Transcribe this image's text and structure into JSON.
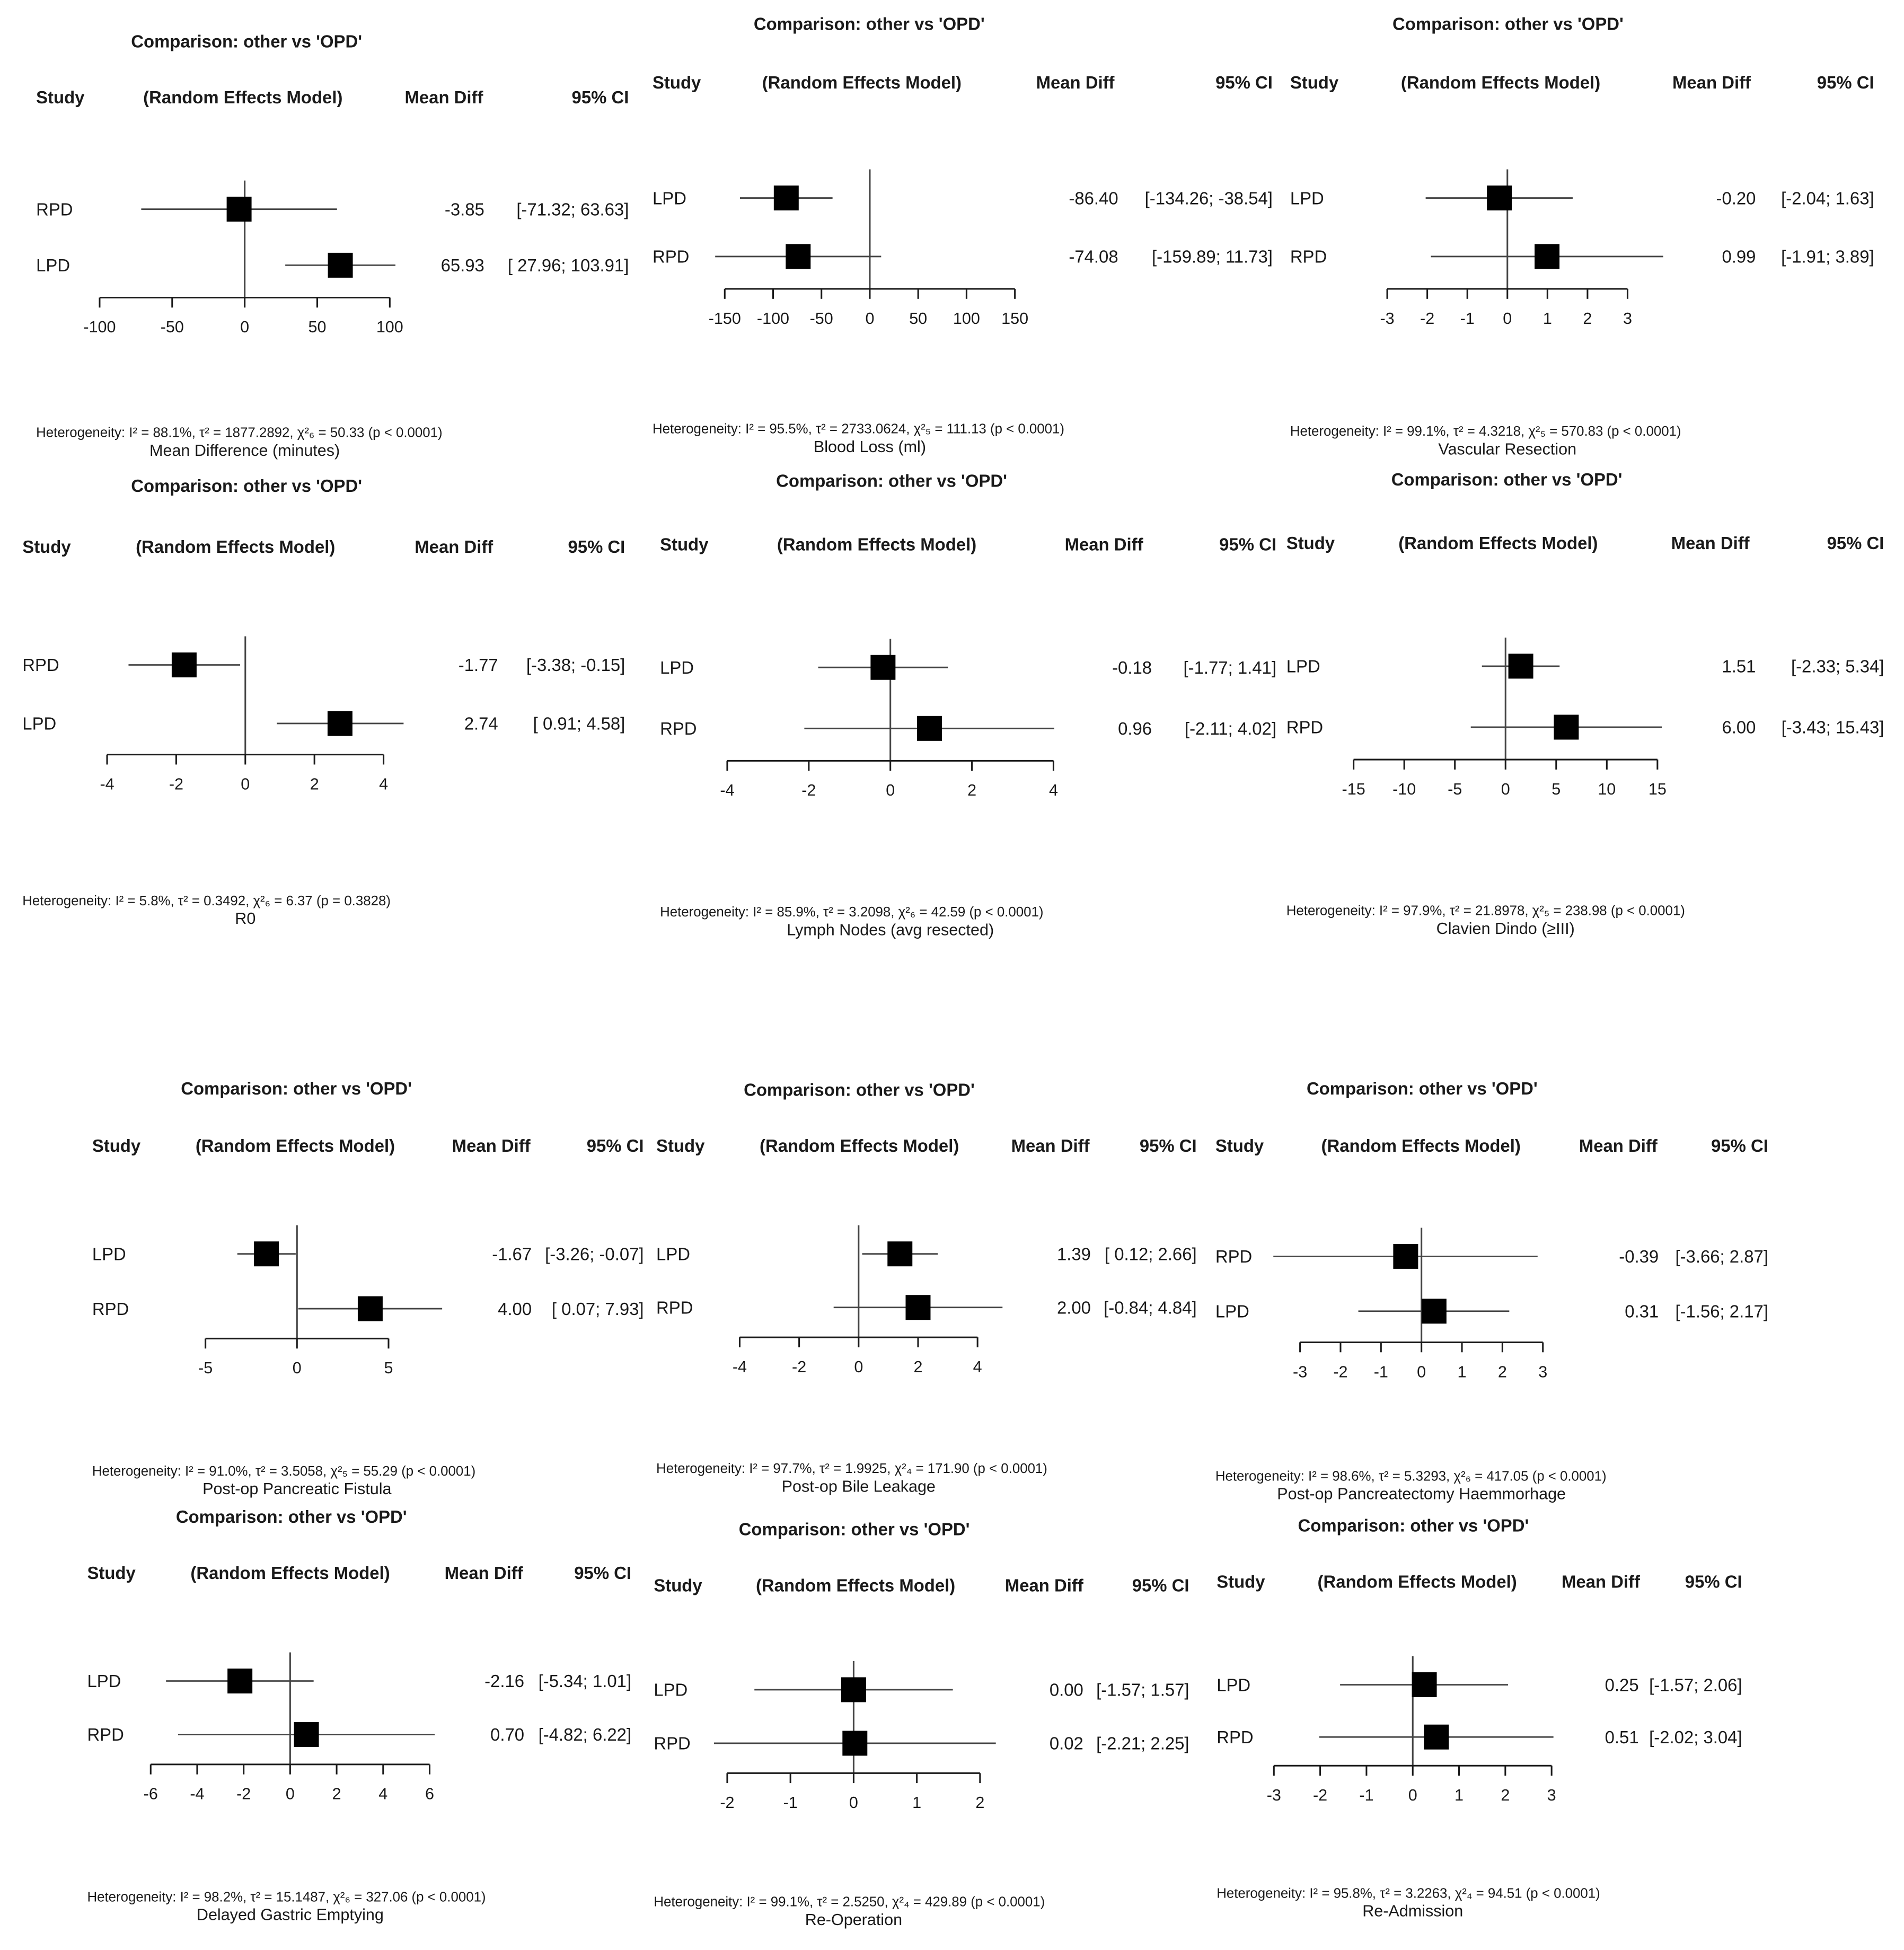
{
  "common": {
    "comparison": "Comparison: other vs 'OPD'",
    "col_study": "Study",
    "col_model": "(Random Effects Model)",
    "col_meandiff": "Mean Diff",
    "col_ci": "95% CI"
  },
  "colors": {
    "ink": "#1a1a1a",
    "marker": "#000000",
    "line": "#444444",
    "background": "#ffffff"
  },
  "chart_data": [
    {
      "type": "forest",
      "title": "Mean Difference (minutes)",
      "heterogeneity": "Heterogeneity: I² = 88.1%, τ² = 1877.2892, χ²₆ = 50.33 (p < 0.0001)",
      "xlim": [
        -100,
        100
      ],
      "ticks": [
        -100,
        -50,
        0,
        50,
        100
      ],
      "null_value": 0,
      "studies": [
        {
          "name": "RPD",
          "md": -3.85,
          "lo": -71.32,
          "hi": 63.63,
          "md_text": "-3.85",
          "ci_text": "[-71.32;  63.63]"
        },
        {
          "name": "LPD",
          "md": 65.93,
          "lo": 27.96,
          "hi": 103.91,
          "md_text": "65.93",
          "ci_text": "[ 27.96; 103.91]"
        }
      ]
    },
    {
      "type": "forest",
      "title": "Blood Loss (ml)",
      "heterogeneity": "Heterogeneity: I² = 95.5%, τ² = 2733.0624, χ²₅ = 111.13 (p < 0.0001)",
      "xlim": [
        -150,
        150
      ],
      "ticks": [
        -150,
        -100,
        -50,
        0,
        50,
        100,
        150
      ],
      "null_value": 0,
      "studies": [
        {
          "name": "LPD",
          "md": -86.4,
          "lo": -134.26,
          "hi": -38.54,
          "md_text": "-86.40",
          "ci_text": "[-134.26; -38.54]"
        },
        {
          "name": "RPD",
          "md": -74.08,
          "lo": -159.89,
          "hi": 11.73,
          "md_text": "-74.08",
          "ci_text": "[-159.89;  11.73]"
        }
      ]
    },
    {
      "type": "forest",
      "title": "Vascular Resection",
      "heterogeneity": "Heterogeneity: I² = 99.1%, τ² = 4.3218, χ²₅ = 570.83 (p < 0.0001)",
      "xlim": [
        -3,
        3
      ],
      "ticks": [
        -3,
        -2,
        -1,
        0,
        1,
        2,
        3
      ],
      "null_value": 0,
      "studies": [
        {
          "name": "LPD",
          "md": -0.2,
          "lo": -2.04,
          "hi": 1.63,
          "md_text": "-0.20",
          "ci_text": "[-2.04; 1.63]"
        },
        {
          "name": "RPD",
          "md": 0.99,
          "lo": -1.91,
          "hi": 3.89,
          "md_text": "0.99",
          "ci_text": "[-1.91; 3.89]"
        }
      ]
    },
    {
      "type": "forest",
      "title": "R0",
      "heterogeneity": "Heterogeneity: I² = 5.8%, τ² = 0.3492, χ²₆ = 6.37 (p = 0.3828)",
      "xlim": [
        -4,
        4
      ],
      "ticks": [
        -4,
        -2,
        0,
        2,
        4
      ],
      "null_value": 0,
      "studies": [
        {
          "name": "RPD",
          "md": -1.77,
          "lo": -3.38,
          "hi": -0.15,
          "md_text": "-1.77",
          "ci_text": "[-3.38; -0.15]"
        },
        {
          "name": "LPD",
          "md": 2.74,
          "lo": 0.91,
          "hi": 4.58,
          "md_text": "2.74",
          "ci_text": "[ 0.91;  4.58]"
        }
      ]
    },
    {
      "type": "forest",
      "title": "Lymph Nodes (avg resected)",
      "heterogeneity": "Heterogeneity: I² = 85.9%, τ² = 3.2098, χ²₆ = 42.59 (p < 0.0001)",
      "xlim": [
        -4,
        4
      ],
      "ticks": [
        -4,
        -2,
        0,
        2,
        4
      ],
      "null_value": 0,
      "studies": [
        {
          "name": "LPD",
          "md": -0.18,
          "lo": -1.77,
          "hi": 1.41,
          "md_text": "-0.18",
          "ci_text": "[-1.77; 1.41]"
        },
        {
          "name": "RPD",
          "md": 0.96,
          "lo": -2.11,
          "hi": 4.02,
          "md_text": "0.96",
          "ci_text": "[-2.11; 4.02]"
        }
      ]
    },
    {
      "type": "forest",
      "title": "Clavien Dindo (≥III)",
      "heterogeneity": "Heterogeneity: I² = 97.9%, τ² = 21.8978, χ²₅ = 238.98 (p < 0.0001)",
      "xlim": [
        -15,
        15
      ],
      "ticks": [
        -15,
        -10,
        -5,
        0,
        5,
        10,
        15
      ],
      "null_value": 0,
      "studies": [
        {
          "name": "LPD",
          "md": 1.51,
          "lo": -2.33,
          "hi": 5.34,
          "md_text": "1.51",
          "ci_text": "[-2.33;  5.34]"
        },
        {
          "name": "RPD",
          "md": 6.0,
          "lo": -3.43,
          "hi": 15.43,
          "md_text": "6.00",
          "ci_text": "[-3.43; 15.43]"
        }
      ]
    },
    {
      "type": "forest",
      "title": "Post-op Pancreatic Fistula",
      "heterogeneity": "Heterogeneity: I² = 91.0%, τ² = 3.5058, χ²₅ = 55.29 (p < 0.0001)",
      "xlim": [
        -5,
        5
      ],
      "ticks": [
        -5,
        0,
        5
      ],
      "null_value": 0,
      "studies": [
        {
          "name": "LPD",
          "md": -1.67,
          "lo": -3.26,
          "hi": -0.07,
          "md_text": "-1.67",
          "ci_text": "[-3.26; -0.07]"
        },
        {
          "name": "RPD",
          "md": 4.0,
          "lo": 0.07,
          "hi": 7.93,
          "md_text": "4.00",
          "ci_text": "[ 0.07;  7.93]"
        }
      ]
    },
    {
      "type": "forest",
      "title": "Post-op Bile Leakage",
      "heterogeneity": "Heterogeneity: I² = 97.7%, τ² = 1.9925, χ²₄ = 171.90 (p < 0.0001)",
      "xlim": [
        -4,
        4
      ],
      "ticks": [
        -4,
        -2,
        0,
        2,
        4
      ],
      "null_value": 0,
      "studies": [
        {
          "name": "LPD",
          "md": 1.39,
          "lo": 0.12,
          "hi": 2.66,
          "md_text": "1.39",
          "ci_text": "[ 0.12; 2.66]"
        },
        {
          "name": "RPD",
          "md": 2.0,
          "lo": -0.84,
          "hi": 4.84,
          "md_text": "2.00",
          "ci_text": "[-0.84; 4.84]"
        }
      ]
    },
    {
      "type": "forest",
      "title": "Post-op Pancreatectomy Haemmorhage",
      "heterogeneity": "Heterogeneity: I² = 98.6%, τ² = 5.3293, χ²₆ = 417.05 (p < 0.0001)",
      "xlim": [
        -3,
        3
      ],
      "ticks": [
        -3,
        -2,
        -1,
        0,
        1,
        2,
        3
      ],
      "null_value": 0,
      "studies": [
        {
          "name": "RPD",
          "md": -0.39,
          "lo": -3.66,
          "hi": 2.87,
          "md_text": "-0.39",
          "ci_text": "[-3.66; 2.87]"
        },
        {
          "name": "LPD",
          "md": 0.31,
          "lo": -1.56,
          "hi": 2.17,
          "md_text": "0.31",
          "ci_text": "[-1.56; 2.17]"
        }
      ]
    },
    {
      "type": "forest",
      "title": "Delayed Gastric Emptying",
      "heterogeneity": "Heterogeneity: I² = 98.2%, τ² = 15.1487, χ²₆ = 327.06 (p < 0.0001)",
      "xlim": [
        -6,
        6
      ],
      "ticks": [
        -6,
        -4,
        -2,
        0,
        2,
        4,
        6
      ],
      "null_value": 0,
      "studies": [
        {
          "name": "LPD",
          "md": -2.16,
          "lo": -5.34,
          "hi": 1.01,
          "md_text": "-2.16",
          "ci_text": "[-5.34; 1.01]"
        },
        {
          "name": "RPD",
          "md": 0.7,
          "lo": -4.82,
          "hi": 6.22,
          "md_text": "0.70",
          "ci_text": "[-4.82; 6.22]"
        }
      ]
    },
    {
      "type": "forest",
      "title": "Re-Operation",
      "heterogeneity": "Heterogeneity: I² = 99.1%, τ² = 2.5250, χ²₄ = 429.89 (p < 0.0001)",
      "xlim": [
        -2,
        2
      ],
      "ticks": [
        -2,
        -1,
        0,
        1,
        2
      ],
      "null_value": 0,
      "studies": [
        {
          "name": "LPD",
          "md": 0.0,
          "lo": -1.57,
          "hi": 1.57,
          "md_text": "0.00",
          "ci_text": "[-1.57; 1.57]"
        },
        {
          "name": "RPD",
          "md": 0.02,
          "lo": -2.21,
          "hi": 2.25,
          "md_text": "0.02",
          "ci_text": "[-2.21; 2.25]"
        }
      ]
    },
    {
      "type": "forest",
      "title": "Re-Admission",
      "heterogeneity": "Heterogeneity: I² = 95.8%, τ² = 3.2263, χ²₄ = 94.51 (p < 0.0001)",
      "xlim": [
        -3,
        3
      ],
      "ticks": [
        -3,
        -2,
        -1,
        0,
        1,
        2,
        3
      ],
      "null_value": 0,
      "studies": [
        {
          "name": "LPD",
          "md": 0.25,
          "lo": -1.57,
          "hi": 2.06,
          "md_text": "0.25",
          "ci_text": "[-1.57; 2.06]"
        },
        {
          "name": "RPD",
          "md": 0.51,
          "lo": -2.02,
          "hi": 3.04,
          "md_text": "0.51",
          "ci_text": "[-2.02; 3.04]"
        }
      ]
    }
  ]
}
